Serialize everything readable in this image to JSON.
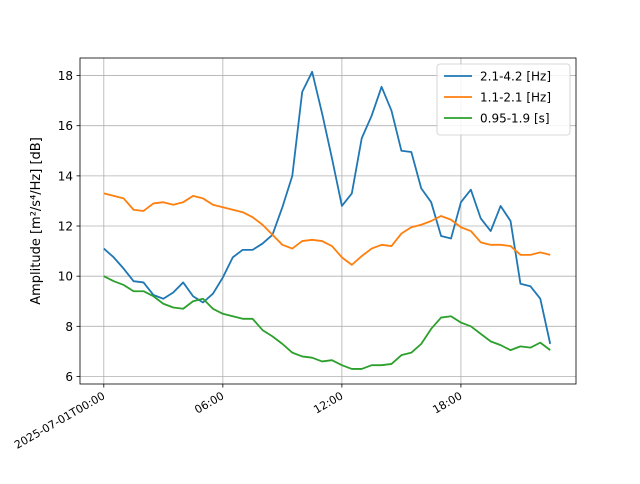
{
  "chart_data": {
    "type": "line",
    "title": "",
    "xlabel": "",
    "ylabel": "Amplitude [m²/s⁴/Hz] [dB]",
    "x_unit": "hours",
    "xlim": [
      -1.2,
      23.8
    ],
    "ylim": [
      5.7,
      18.7
    ],
    "grid": true,
    "legend_position": "top-right",
    "x_ticks": [
      {
        "x": 0,
        "label": "2025-07-01T00:00"
      },
      {
        "x": 6,
        "label": "06:00"
      },
      {
        "x": 12,
        "label": "12:00"
      },
      {
        "x": 18,
        "label": "18:00"
      }
    ],
    "y_ticks": [
      6,
      8,
      10,
      12,
      14,
      16,
      18
    ],
    "x": [
      0,
      0.5,
      1,
      1.5,
      2,
      2.5,
      3,
      3.5,
      4,
      4.5,
      5,
      5.5,
      6,
      6.5,
      7,
      7.5,
      8,
      8.5,
      9,
      9.5,
      10,
      10.5,
      11,
      11.5,
      12,
      12.5,
      13,
      13.5,
      14,
      14.5,
      15,
      15.5,
      16,
      16.5,
      17,
      17.5,
      18,
      18.5,
      19,
      19.5,
      20,
      20.5,
      21,
      21.5,
      22,
      22.5
    ],
    "series": [
      {
        "name": "2.1-4.2 [Hz]",
        "color": "#1f77b4",
        "values": [
          11.1,
          10.75,
          10.3,
          9.8,
          9.75,
          9.25,
          9.1,
          9.35,
          9.75,
          9.2,
          8.95,
          9.3,
          9.95,
          10.75,
          11.05,
          11.05,
          11.3,
          11.65,
          12.75,
          14.0,
          17.35,
          18.15,
          16.5,
          14.7,
          12.8,
          13.3,
          15.5,
          16.4,
          17.55,
          16.6,
          15.0,
          14.95,
          13.5,
          12.95,
          11.6,
          11.5,
          12.95,
          13.45,
          12.3,
          11.8,
          12.8,
          12.2,
          9.7,
          9.6,
          9.1,
          7.3
        ]
      },
      {
        "name": "1.1-2.1 [Hz]",
        "color": "#ff7f0e",
        "values": [
          13.3,
          13.2,
          13.1,
          12.65,
          12.6,
          12.9,
          12.95,
          12.85,
          12.95,
          13.2,
          13.1,
          12.85,
          12.75,
          12.65,
          12.55,
          12.35,
          12.05,
          11.65,
          11.25,
          11.1,
          11.4,
          11.45,
          11.4,
          11.2,
          10.75,
          10.45,
          10.8,
          11.1,
          11.25,
          11.2,
          11.7,
          11.95,
          12.05,
          12.2,
          12.4,
          12.25,
          11.95,
          11.8,
          11.35,
          11.25,
          11.25,
          11.2,
          10.85,
          10.85,
          10.95,
          10.85
        ]
      },
      {
        "name": "0.95-1.9 [s]",
        "color": "#2ca02c",
        "values": [
          10.0,
          9.8,
          9.65,
          9.4,
          9.4,
          9.2,
          8.9,
          8.75,
          8.7,
          9.0,
          9.1,
          8.7,
          8.5,
          8.4,
          8.3,
          8.3,
          7.85,
          7.6,
          7.3,
          6.95,
          6.8,
          6.75,
          6.6,
          6.65,
          6.45,
          6.3,
          6.3,
          6.45,
          6.45,
          6.5,
          6.85,
          6.95,
          7.3,
          7.9,
          8.35,
          8.4,
          8.15,
          8.0,
          7.7,
          7.4,
          7.25,
          7.05,
          7.2,
          7.15,
          7.35,
          7.05
        ]
      }
    ]
  }
}
